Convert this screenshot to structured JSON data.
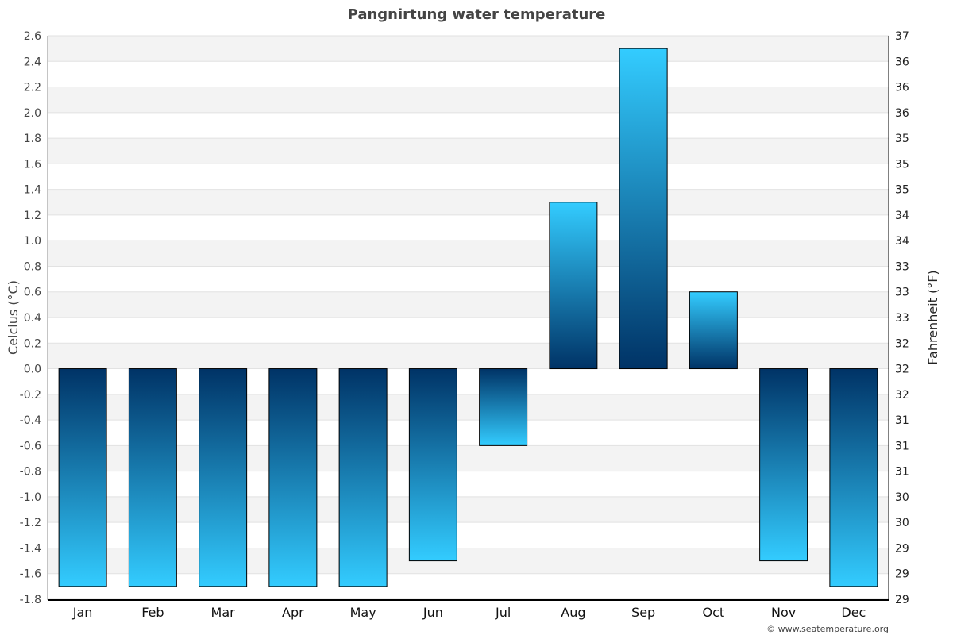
{
  "chart_data": {
    "type": "bar",
    "title": "Pangnirtung water temperature",
    "ylabel": "Celcius (°C)",
    "ylabel_right": "Fahrenheit (°F)",
    "xlabel": "",
    "categories": [
      "Jan",
      "Feb",
      "Mar",
      "Apr",
      "May",
      "Jun",
      "Jul",
      "Aug",
      "Sep",
      "Oct",
      "Nov",
      "Dec"
    ],
    "values": [
      -1.7,
      -1.7,
      -1.7,
      -1.7,
      -1.7,
      -1.5,
      -0.6,
      1.3,
      2.5,
      0.6,
      -1.5,
      -1.7
    ],
    "ylim": [
      -1.8,
      2.6
    ],
    "yticks": [
      "2.6",
      "2.4",
      "2.2",
      "2.0",
      "1.8",
      "1.6",
      "1.4",
      "1.2",
      "1.0",
      "0.8",
      "0.6",
      "0.4",
      "0.2",
      "0.0",
      "-0.2",
      "-0.4",
      "-0.6",
      "-0.8",
      "-1.0",
      "-1.2",
      "-1.4",
      "-1.6",
      "-1.8"
    ],
    "yticks_right": [
      "37",
      "36",
      "36",
      "36",
      "35",
      "35",
      "35",
      "34",
      "34",
      "33",
      "33",
      "33",
      "32",
      "32",
      "32",
      "31",
      "31",
      "31",
      "30",
      "30",
      "29",
      "29",
      "29"
    ],
    "grid": true,
    "colors": {
      "bar_dark": "#003366",
      "bar_light": "#33ccff",
      "band": "#f3f3f3"
    }
  },
  "footer": {
    "credit": "© www.seatemperature.org"
  }
}
